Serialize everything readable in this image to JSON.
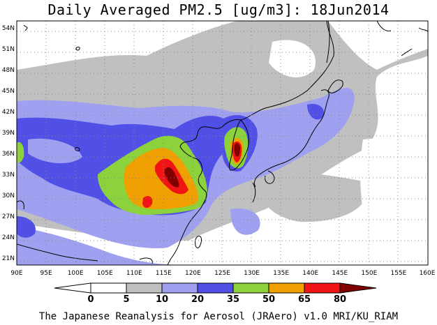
{
  "title": "Daily Averaged PM2.5 [ug/m3]: 18Jun2014",
  "footer": "The Japanese Reanalysis for Aerosol (JRAero) v1.0 MRI/KU_RIAM",
  "map": {
    "lon_range": [
      90,
      160
    ],
    "lat_range": [
      20,
      55
    ],
    "lon_ticks": [
      "90E",
      "95E",
      "100E",
      "105E",
      "110E",
      "115E",
      "120E",
      "125E",
      "130E",
      "135E",
      "140E",
      "145E",
      "150E",
      "155E",
      "160E"
    ],
    "lat_ticks": [
      "21N",
      "24N",
      "27N",
      "30N",
      "33N",
      "36N",
      "39N",
      "42N",
      "45N",
      "48N",
      "51N",
      "54N"
    ],
    "grid": true
  },
  "legend": {
    "levels": [
      "0",
      "5",
      "10",
      "20",
      "35",
      "50",
      "65",
      "80"
    ],
    "colors": [
      "#ffffff",
      "#c0c0c0",
      "#a0a0f0",
      "#5050e6",
      "#8cd23c",
      "#f0a000",
      "#f01414",
      "#800000"
    ]
  }
}
